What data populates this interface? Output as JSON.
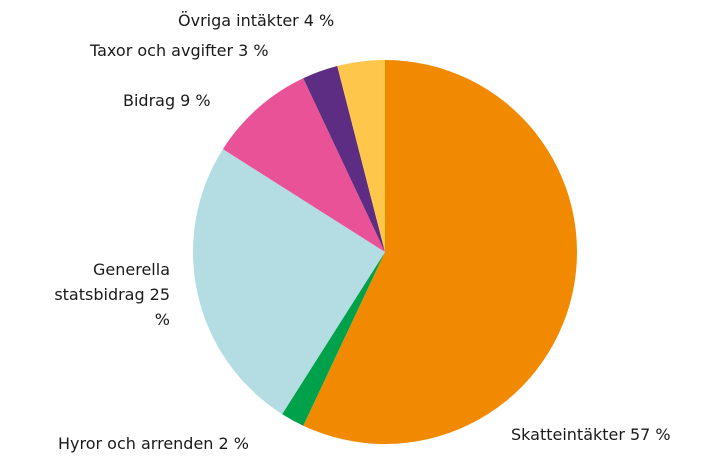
{
  "chart_data": {
    "type": "pie",
    "categories": [
      "Skatteintäkter",
      "Hyror och arrenden",
      "Generella statsbidrag",
      "Bidrag",
      "Taxor och avgifter",
      "Övriga intäkter"
    ],
    "values": [
      57,
      2,
      25,
      9,
      3,
      4
    ],
    "value_labels": [
      "57 %",
      "2 %",
      "25 %",
      "9 %",
      "3 %",
      "4 %"
    ],
    "colors": [
      "#f18a00",
      "#00a14b",
      "#b3dde3",
      "#ea5297",
      "#5c2d82",
      "#ffc64c"
    ],
    "start_angle": 90,
    "direction": "clockwise"
  }
}
